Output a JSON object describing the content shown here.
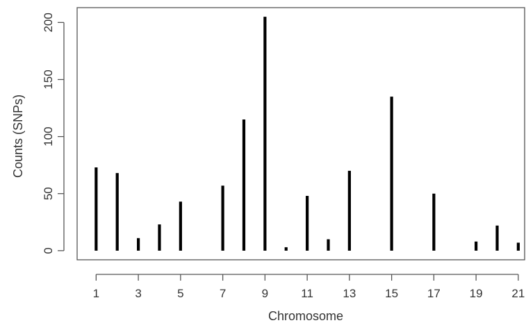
{
  "chart_data": {
    "type": "bar",
    "title": "",
    "xlabel": "Chromosome",
    "ylabel": "Counts (SNPs)",
    "x_ticks": [
      1,
      3,
      5,
      7,
      9,
      11,
      13,
      15,
      17,
      19,
      21
    ],
    "y_ticks": [
      0,
      50,
      100,
      150,
      200
    ],
    "xlim": [
      0.1,
      21.3
    ],
    "ylim": [
      -8,
      213
    ],
    "grid": false,
    "series": [
      {
        "x": [
          1,
          2,
          3,
          4,
          5,
          7,
          8,
          9,
          10,
          11,
          12,
          13,
          15,
          17,
          19,
          20,
          21
        ],
        "values": [
          73,
          68,
          11,
          23,
          43,
          57,
          115,
          205,
          3,
          48,
          10,
          70,
          135,
          50,
          8,
          22,
          7
        ]
      }
    ]
  },
  "colors": {
    "bars": "#000000",
    "axes": "#555555",
    "text": "#333333"
  }
}
